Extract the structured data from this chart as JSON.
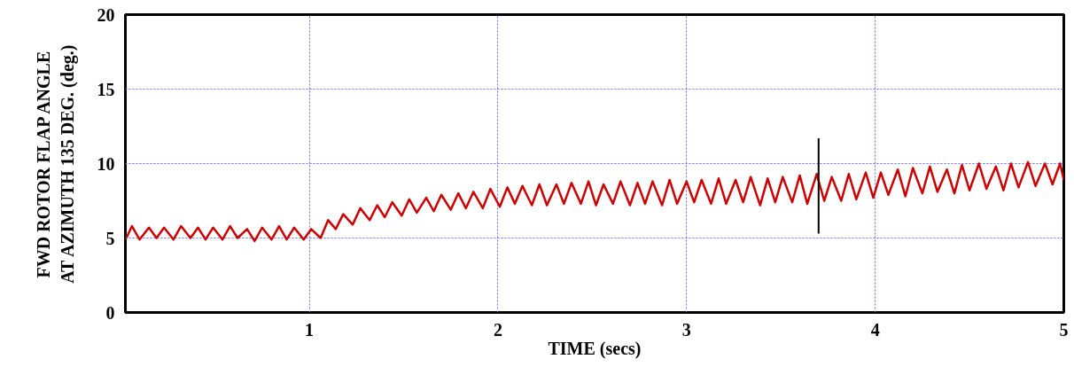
{
  "chart_data": {
    "type": "line",
    "xlabel": "TIME (secs)",
    "ylabel": "FWD ROTOR FLAP ANGLE\nAT AZIMUTH 135 DEG. (deg.)",
    "xlim": [
      0.025,
      5
    ],
    "ylim": [
      0,
      20
    ],
    "xticks": [
      1,
      2,
      3,
      4,
      5
    ],
    "yticks": [
      0,
      5,
      10,
      15,
      20
    ],
    "grid": true,
    "marker": "none",
    "line_style": "solid",
    "series": [
      {
        "color": "#cc0000",
        "x": [
          0.03,
          0.06,
          0.1,
          0.15,
          0.19,
          0.23,
          0.28,
          0.32,
          0.37,
          0.41,
          0.45,
          0.49,
          0.54,
          0.58,
          0.62,
          0.67,
          0.71,
          0.75,
          0.8,
          0.84,
          0.88,
          0.92,
          0.97,
          1.01,
          1.06,
          1.1,
          1.14,
          1.18,
          1.23,
          1.27,
          1.32,
          1.36,
          1.4,
          1.44,
          1.49,
          1.53,
          1.57,
          1.62,
          1.66,
          1.7,
          1.75,
          1.79,
          1.83,
          1.87,
          1.92,
          1.96,
          2.01,
          2.05,
          2.09,
          2.13,
          2.18,
          2.22,
          2.26,
          2.31,
          2.35,
          2.39,
          2.44,
          2.48,
          2.52,
          2.56,
          2.61,
          2.65,
          2.7,
          2.74,
          2.78,
          2.82,
          2.87,
          2.91,
          2.95,
          3.0,
          3.04,
          3.08,
          3.13,
          3.17,
          3.21,
          3.26,
          3.3,
          3.34,
          3.39,
          3.43,
          3.47,
          3.51,
          3.56,
          3.6,
          3.64,
          3.69,
          3.73,
          3.77,
          3.82,
          3.86,
          3.9,
          3.95,
          3.99,
          4.03,
          4.07,
          4.12,
          4.16,
          4.2,
          4.25,
          4.29,
          4.33,
          4.38,
          4.42,
          4.46,
          4.5,
          4.55,
          4.59,
          4.64,
          4.68,
          4.72,
          4.76,
          4.81,
          4.85,
          4.9,
          4.94,
          4.98,
          5.0
        ],
        "values": [
          5.0,
          5.8,
          4.9,
          5.7,
          5.0,
          5.7,
          4.9,
          5.8,
          5.0,
          5.7,
          4.9,
          5.7,
          4.9,
          5.8,
          5.0,
          5.6,
          4.8,
          5.7,
          4.9,
          5.8,
          4.9,
          5.7,
          4.9,
          5.6,
          5.0,
          6.2,
          5.6,
          6.6,
          5.9,
          7.0,
          6.2,
          7.2,
          6.4,
          7.4,
          6.5,
          7.6,
          6.7,
          7.7,
          6.8,
          7.9,
          6.9,
          8.0,
          7.0,
          8.1,
          7.0,
          8.3,
          7.1,
          8.4,
          7.3,
          8.5,
          7.2,
          8.6,
          7.2,
          8.6,
          7.3,
          8.7,
          7.3,
          8.8,
          7.2,
          8.6,
          7.3,
          8.8,
          7.2,
          8.7,
          7.3,
          8.8,
          7.2,
          8.9,
          7.3,
          8.8,
          7.4,
          8.9,
          7.3,
          9.0,
          7.3,
          8.9,
          7.4,
          9.1,
          7.2,
          9.0,
          7.4,
          9.1,
          7.4,
          9.2,
          7.3,
          9.3,
          7.5,
          9.1,
          7.5,
          9.3,
          7.6,
          9.4,
          7.7,
          9.4,
          7.9,
          9.6,
          7.8,
          9.7,
          8.0,
          9.8,
          8.1,
          9.6,
          8.0,
          9.9,
          8.2,
          10.0,
          8.3,
          9.8,
          8.2,
          10.0,
          8.4,
          10.1,
          8.5,
          10.0,
          8.6,
          10.0,
          8.9
        ]
      },
      {
        "color": "#000000",
        "x": [
          3.7,
          3.7
        ],
        "values": [
          5.3,
          11.7
        ]
      }
    ]
  }
}
